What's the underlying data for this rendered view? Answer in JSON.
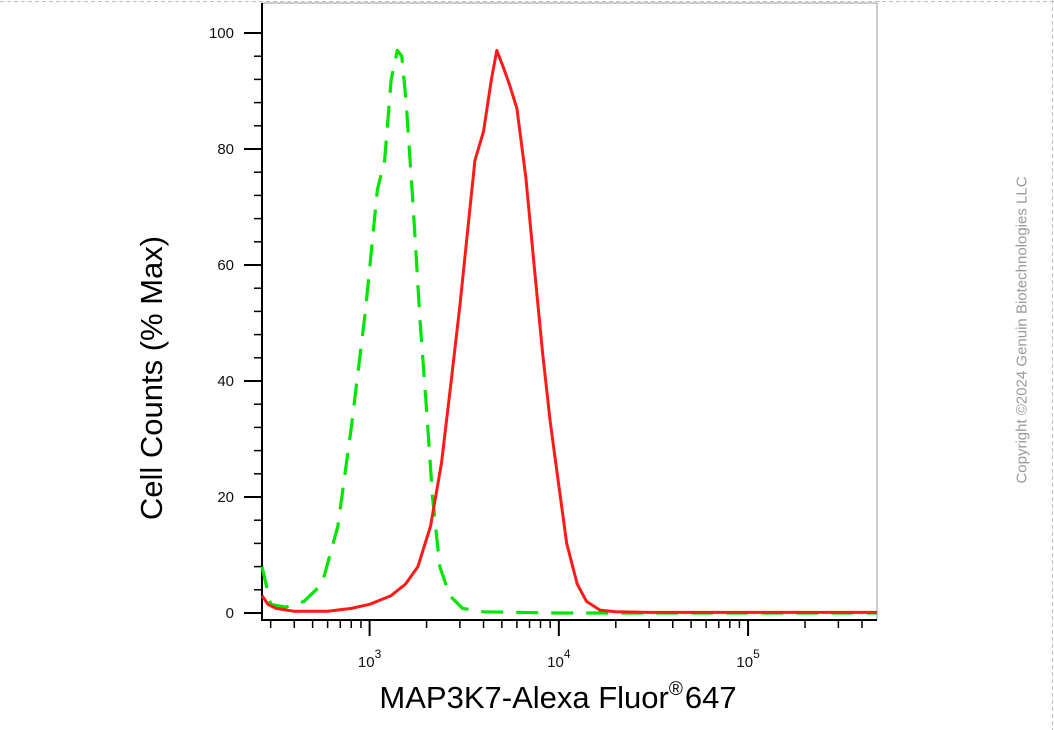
{
  "chart_data": {
    "type": "line",
    "xlabel": "MAP3K7-Alexa Fluor",
    "xlabel_superscript": "®",
    "xlabel_suffix": "647",
    "ylabel": "Cell Counts (% Max)",
    "x_scale": "log",
    "xlim": [
      270,
      480000
    ],
    "ylim": [
      0,
      100
    ],
    "y_ticks": [
      0,
      20,
      40,
      60,
      80,
      100
    ],
    "x_ticks": [
      {
        "base": "10",
        "exp": "3",
        "value": 1000
      },
      {
        "base": "10",
        "exp": "4",
        "value": 10000
      },
      {
        "base": "10",
        "exp": "5",
        "value": 100000
      }
    ],
    "grid": false,
    "legend": false,
    "series": [
      {
        "color": "#00e600",
        "style": "dashed",
        "points": [
          [
            270,
            8
          ],
          [
            300,
            1.5
          ],
          [
            360,
            1
          ],
          [
            450,
            2
          ],
          [
            560,
            5
          ],
          [
            680,
            15
          ],
          [
            800,
            32
          ],
          [
            950,
            52
          ],
          [
            1100,
            73
          ],
          [
            1200,
            78
          ],
          [
            1300,
            92
          ],
          [
            1400,
            97
          ],
          [
            1480,
            96
          ],
          [
            1560,
            88
          ],
          [
            1700,
            70
          ],
          [
            1850,
            50
          ],
          [
            2000,
            35
          ],
          [
            2150,
            20
          ],
          [
            2350,
            8
          ],
          [
            2650,
            3
          ],
          [
            3100,
            0.8
          ],
          [
            4000,
            0.2
          ],
          [
            10000,
            0
          ],
          [
            480000,
            0
          ]
        ]
      },
      {
        "color": "#ff1a1a",
        "style": "solid",
        "points": [
          [
            270,
            3
          ],
          [
            290,
            1.5
          ],
          [
            320,
            0.8
          ],
          [
            400,
            0.3
          ],
          [
            600,
            0.3
          ],
          [
            800,
            0.8
          ],
          [
            1000,
            1.5
          ],
          [
            1300,
            3
          ],
          [
            1550,
            5
          ],
          [
            1800,
            8
          ],
          [
            2100,
            15
          ],
          [
            2400,
            26
          ],
          [
            2700,
            40
          ],
          [
            3000,
            53
          ],
          [
            3300,
            66
          ],
          [
            3600,
            78
          ],
          [
            4000,
            83
          ],
          [
            4400,
            92
          ],
          [
            4700,
            97
          ],
          [
            5100,
            94
          ],
          [
            5500,
            91
          ],
          [
            6000,
            87
          ],
          [
            6700,
            75
          ],
          [
            7400,
            60
          ],
          [
            8200,
            45
          ],
          [
            9000,
            33
          ],
          [
            10000,
            22
          ],
          [
            11000,
            12
          ],
          [
            12500,
            5
          ],
          [
            14000,
            2
          ],
          [
            16500,
            0.5
          ],
          [
            20000,
            0.2
          ],
          [
            30000,
            0.1
          ],
          [
            480000,
            0.1
          ]
        ]
      }
    ]
  },
  "copyright": "Copyright ©2024 Genuin Biotechnologies LLC"
}
